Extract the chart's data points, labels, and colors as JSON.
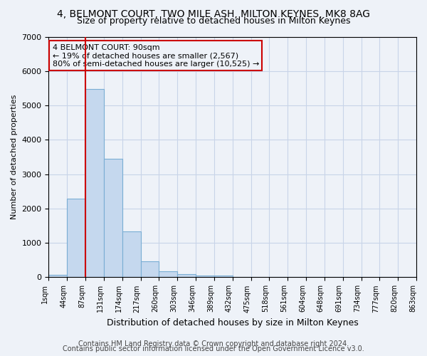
{
  "title1": "4, BELMONT COURT, TWO MILE ASH, MILTON KEYNES, MK8 8AG",
  "title2": "Size of property relative to detached houses in Milton Keynes",
  "xlabel": "Distribution of detached houses by size in Milton Keynes",
  "ylabel": "Number of detached properties",
  "footer1": "Contains HM Land Registry data © Crown copyright and database right 2024.",
  "footer2": "Contains public sector information licensed under the Open Government Licence v3.0.",
  "annotation_line1": "4 BELMONT COURT: 90sqm",
  "annotation_line2": "← 19% of detached houses are smaller (2,567)",
  "annotation_line3": "80% of semi-detached houses are larger (10,525) →",
  "property_size_bin": 2,
  "bar_values": [
    70,
    2280,
    5470,
    3450,
    1330,
    460,
    165,
    90,
    55,
    45,
    0,
    0,
    0,
    0,
    0,
    0,
    0,
    0,
    0,
    0
  ],
  "tick_labels": [
    "1sqm",
    "44sqm",
    "87sqm",
    "131sqm",
    "174sqm",
    "217sqm",
    "260sqm",
    "303sqm",
    "346sqm",
    "389sqm",
    "432sqm",
    "475sqm",
    "518sqm",
    "561sqm",
    "604sqm",
    "648sqm",
    "691sqm",
    "734sqm",
    "777sqm",
    "820sqm",
    "863sqm"
  ],
  "bar_color": "#c5d8ee",
  "bar_edge_color": "#7aaed4",
  "redline_color": "#cc0000",
  "annotation_box_edge": "#cc0000",
  "grid_color": "#c8d4e8",
  "bg_color": "#eef2f8",
  "ylim": [
    0,
    7000
  ],
  "yticks": [
    0,
    1000,
    2000,
    3000,
    4000,
    5000,
    6000,
    7000
  ],
  "title1_fontsize": 10,
  "title2_fontsize": 9,
  "xlabel_fontsize": 9,
  "ylabel_fontsize": 8,
  "footer_fontsize": 7
}
